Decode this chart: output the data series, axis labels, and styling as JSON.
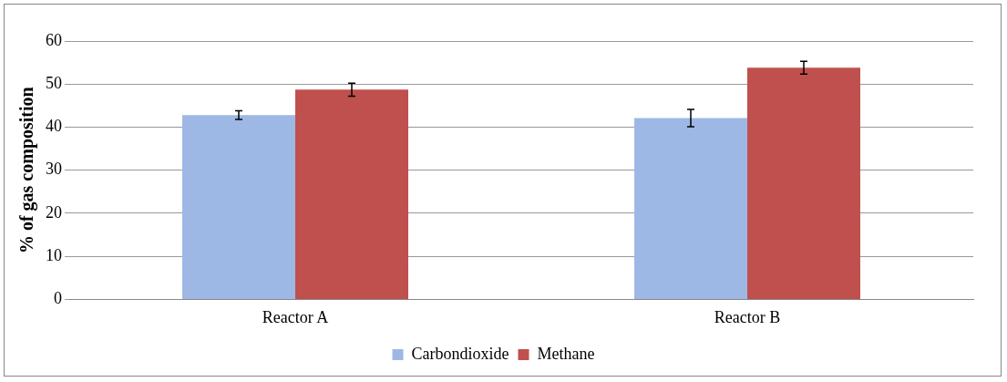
{
  "chart_data": {
    "type": "bar",
    "ylabel": "% of gas composition",
    "categories": [
      "Reactor A",
      "Reactor B"
    ],
    "series": [
      {
        "name": "Carbondioxide",
        "color": "#9db8e4",
        "values": [
          42.8,
          42.1
        ],
        "errors": [
          1.0,
          2.0
        ]
      },
      {
        "name": "Methane",
        "color": "#c0504d",
        "values": [
          48.7,
          53.8
        ],
        "errors": [
          1.5,
          1.5
        ]
      }
    ],
    "ylim": [
      0,
      60
    ],
    "yticks": [
      0,
      10,
      20,
      30,
      40,
      50,
      60
    ],
    "grid": "y",
    "legend": "bottom"
  }
}
